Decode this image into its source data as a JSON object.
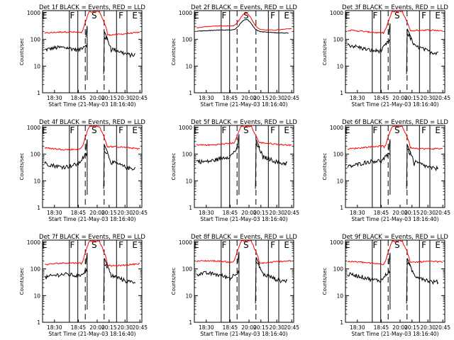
{
  "colors": {
    "events": "#000000",
    "lld": "#ff0000",
    "axes": "#000000",
    "background": "#ffffff"
  },
  "chart_data": [
    {
      "type": "line",
      "title": "Det 1f BLACK = Events, RED = LLD",
      "shape": "normal",
      "xlabel": "Start Time (21-May-03 18:16:40)",
      "ylabel": "Counts/sec",
      "xticks": [
        "18:30",
        "18:45",
        "20:00",
        "20:15",
        "20:30",
        "20:45"
      ],
      "yticks": [
        "1",
        "10",
        "100",
        "1000"
      ],
      "ylim": [
        1,
        1200
      ],
      "yscale": "log",
      "period_labels": [
        "E",
        "F",
        "S",
        "F",
        "E"
      ],
      "events_base": 40,
      "lld_base": 170,
      "lld_peak": 1100
    },
    {
      "type": "line",
      "title": "Det 2f BLACK = Events, RED = LLD",
      "shape": "det2",
      "xlabel": "Start Time (21-May-03 18:16:40)",
      "ylabel": "Counts/sec",
      "xticks": [
        "18:30",
        "18:45",
        "20:00",
        "20:15",
        "20:30",
        "20:45"
      ],
      "yticks": [
        "1",
        "10",
        "100",
        "1000"
      ],
      "ylim": [
        1,
        1200
      ],
      "yscale": "log",
      "period_labels": [
        "E",
        "F",
        "S",
        "F",
        "E"
      ],
      "events_base": 250,
      "lld_base": 320,
      "lld_peak": 1000
    },
    {
      "type": "line",
      "title": "Det 3f BLACK = Events, RED = LLD",
      "shape": "normal",
      "xlabel": "Start Time (21-May-03 18:16:40)",
      "ylabel": "Counts/sec",
      "xticks": [
        "18:30",
        "18:45",
        "20:00",
        "20:15",
        "20:30",
        "20:45"
      ],
      "yticks": [
        "1",
        "10",
        "100",
        "1000"
      ],
      "ylim": [
        1,
        1200
      ],
      "yscale": "log",
      "period_labels": [
        "E",
        "F",
        "S",
        "F",
        "E"
      ],
      "events_base": 50,
      "lld_base": 200,
      "lld_peak": 1100
    },
    {
      "type": "line",
      "title": "Det 4f BLACK = Events, RED = LLD",
      "shape": "normal",
      "xlabel": "Start Time (21-May-03 18:16:40)",
      "ylabel": "Counts/sec",
      "xticks": [
        "18:30",
        "18:45",
        "20:00",
        "20:15",
        "20:30",
        "20:45"
      ],
      "yticks": [
        "1",
        "10",
        "100",
        "1000"
      ],
      "ylim": [
        1,
        1200
      ],
      "yscale": "log",
      "period_labels": [
        "E",
        "F",
        "S",
        "F",
        "E"
      ],
      "events_base": 45,
      "lld_base": 170,
      "lld_peak": 1100
    },
    {
      "type": "line",
      "title": "Det 5f BLACK = Events, RED = LLD",
      "shape": "normal",
      "xlabel": "Start Time (21-May-03 18:16:40)",
      "ylabel": "Counts/sec",
      "xticks": [
        "18:30",
        "18:45",
        "20:00",
        "20:15",
        "20:30",
        "20:45"
      ],
      "yticks": [
        "1",
        "10",
        "100",
        "1000"
      ],
      "ylim": [
        1,
        1200
      ],
      "yscale": "log",
      "period_labels": [
        "E",
        "F",
        "S",
        "F",
        "E"
      ],
      "events_base": 70,
      "lld_base": 250,
      "lld_peak": 1100
    },
    {
      "type": "line",
      "title": "Det 6f BLACK = Events, RED = LLD",
      "shape": "normal",
      "xlabel": "Start Time (21-May-03 18:16:40)",
      "ylabel": "Counts/sec",
      "xticks": [
        "18:30",
        "18:45",
        "20:00",
        "20:15",
        "20:30",
        "20:45"
      ],
      "yticks": [
        "1",
        "10",
        "100",
        "1000"
      ],
      "ylim": [
        1,
        1200
      ],
      "yscale": "log",
      "period_labels": [
        "E",
        "F",
        "S",
        "F",
        "E"
      ],
      "events_base": 45,
      "lld_base": 180,
      "lld_peak": 1100
    },
    {
      "type": "line",
      "title": "Det 7f BLACK = Events, RED = LLD",
      "shape": "normal",
      "xlabel": "Start Time (21-May-03 18:16:40)",
      "ylabel": "Counts/sec",
      "xticks": [
        "18:30",
        "18:45",
        "20:00",
        "20:15",
        "20:30",
        "20:45"
      ],
      "yticks": [
        "1",
        "10",
        "100",
        "1000"
      ],
      "ylim": [
        1,
        1200
      ],
      "yscale": "log",
      "period_labels": [
        "E",
        "F",
        "S",
        "F",
        "E"
      ],
      "events_base": 50,
      "lld_base": 150,
      "lld_peak": 1100
    },
    {
      "type": "line",
      "title": "Det 8f BLACK = Events, RED = LLD",
      "shape": "normal",
      "xlabel": "Start Time (21-May-03 18:16:40)",
      "ylabel": "Counts/sec",
      "xticks": [
        "18:30",
        "18:45",
        "20:00",
        "20:15",
        "20:30",
        "20:45"
      ],
      "yticks": [
        "1",
        "10",
        "100",
        "1000"
      ],
      "ylim": [
        1,
        1200
      ],
      "yscale": "log",
      "period_labels": [
        "E",
        "F",
        "S",
        "F",
        "E"
      ],
      "events_base": 55,
      "lld_base": 180,
      "lld_peak": 1100
    },
    {
      "type": "line",
      "title": "Det 9f BLACK = Events, RED = LLD",
      "shape": "normal",
      "xlabel": "Start Time (21-May-03 18:16:40)",
      "ylabel": "Counts/sec",
      "xticks": [
        "18:30",
        "18:45",
        "20:00",
        "20:15",
        "20:30",
        "20:45"
      ],
      "yticks": [
        "1",
        "10",
        "100",
        "1000"
      ],
      "ylim": [
        1,
        1200
      ],
      "yscale": "log",
      "period_labels": [
        "E",
        "F",
        "S",
        "F",
        "E"
      ],
      "events_base": 50,
      "lld_base": 170,
      "lld_peak": 1100
    }
  ]
}
